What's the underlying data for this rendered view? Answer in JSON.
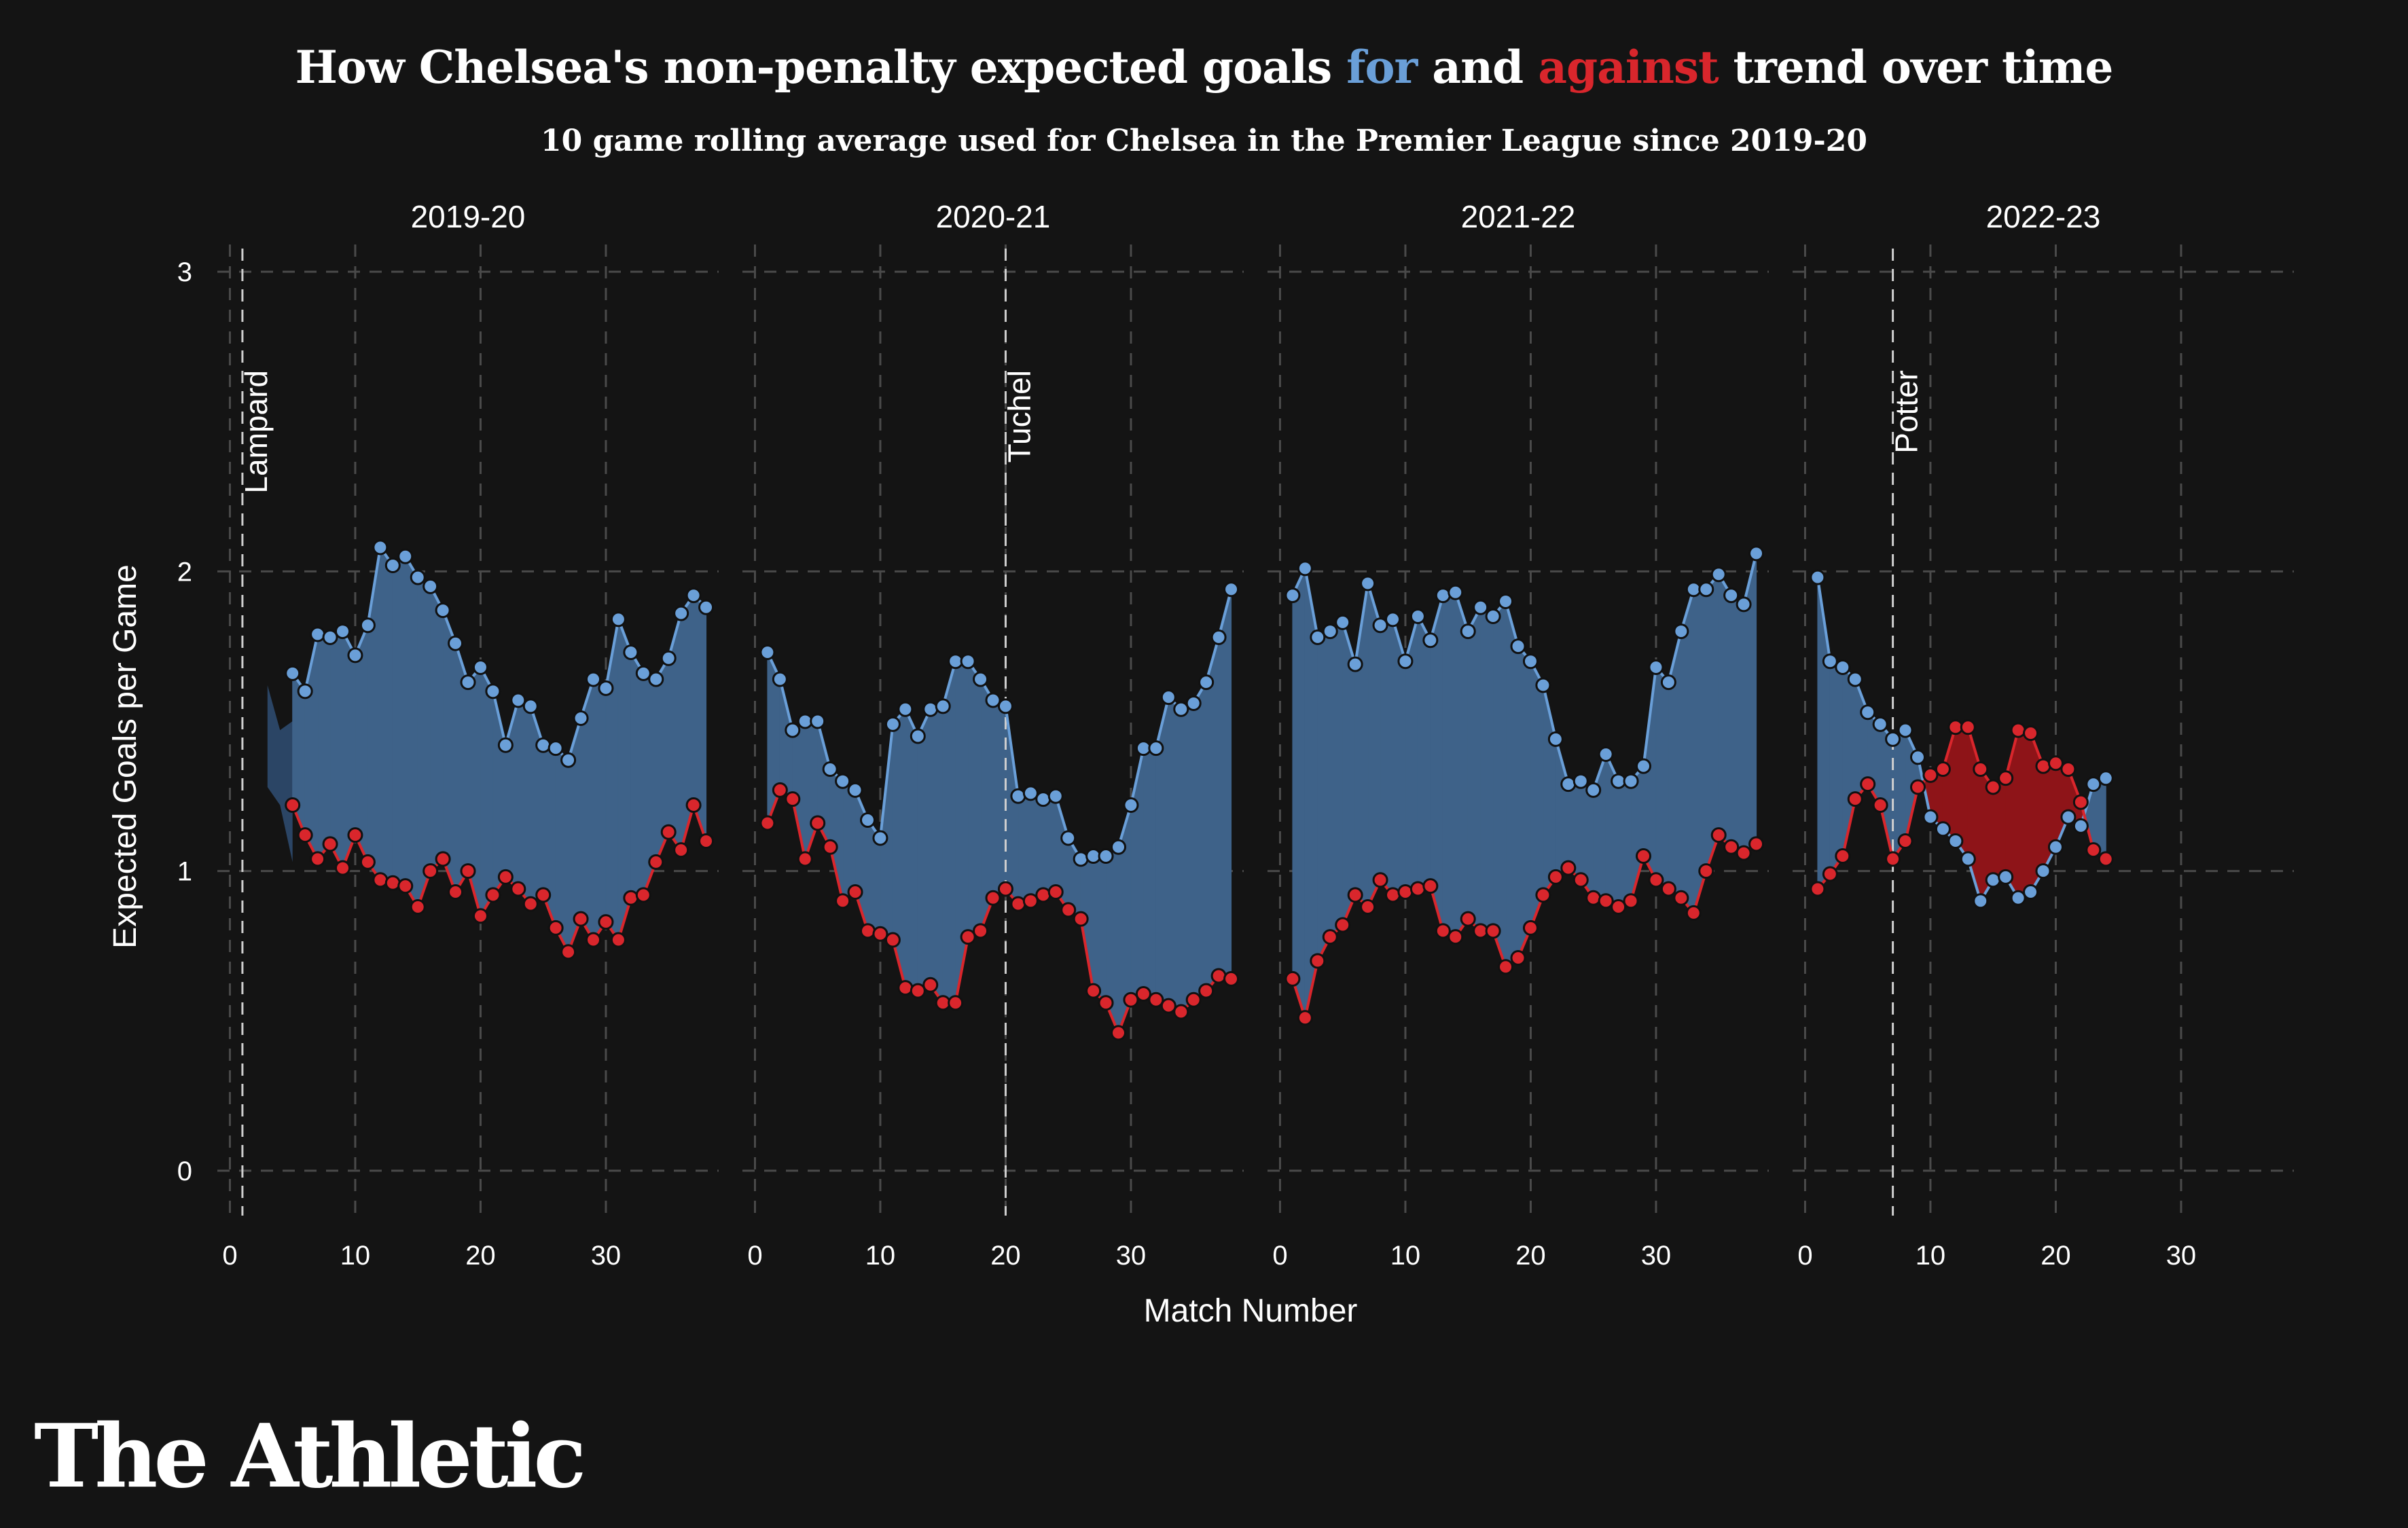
{
  "header": {
    "title_prefix": "How Chelsea's non-penalty expected goals ",
    "title_for": "for",
    "title_mid": " and ",
    "title_against": "against",
    "title_suffix": " trend over time",
    "subtitle": "10 game rolling average used for Chelsea in the Premier League since 2019-20"
  },
  "brand": "The Athletic",
  "colors": {
    "background": "#141414",
    "for": "#6a9fd8",
    "against": "#d9262c",
    "fill_for_ahead": "#3e6289",
    "fill_against_ahead": "#8e1418",
    "grid": "#4a4a4a"
  },
  "chart_data": {
    "type": "line",
    "title": "How Chelsea's non-penalty expected goals for and against trend over time",
    "subtitle": "10 game rolling average used for Chelsea in the Premier League since 2019-20",
    "xlabel": "Match Number",
    "ylabel": "Expected Goals per Game",
    "xlim": [
      -1,
      39
    ],
    "ylim": [
      -0.15,
      3.05
    ],
    "x_ticks": [
      0,
      10,
      20,
      30
    ],
    "y_ticks": [
      0,
      1,
      2,
      3
    ],
    "grid": true,
    "facets": [
      {
        "season": "2019-20",
        "manager_lines": [
          {
            "x": 1,
            "label": "Lampard"
          }
        ],
        "shaded_lead": {
          "start": 3,
          "for": [
            1.62,
            1.47,
            1.5
          ],
          "against": [
            1.28,
            1.22,
            1.03
          ]
        },
        "series": [
          {
            "name": "for",
            "start": 5,
            "values": [
              1.66,
              1.6,
              1.79,
              1.78,
              1.8,
              1.72,
              1.82,
              2.08,
              2.02,
              2.05,
              1.98,
              1.95,
              1.87,
              1.76,
              1.63,
              1.68,
              1.6,
              1.42,
              1.57,
              1.55,
              1.42,
              1.41,
              1.37,
              1.51,
              1.64,
              1.61,
              1.84,
              1.73,
              1.66,
              1.64,
              1.71,
              1.86,
              1.92,
              1.88
            ]
          },
          {
            "name": "against",
            "start": 5,
            "values": [
              1.22,
              1.12,
              1.04,
              1.09,
              1.01,
              1.12,
              1.03,
              0.97,
              0.96,
              0.95,
              0.88,
              1.0,
              1.04,
              0.93,
              1.0,
              0.85,
              0.92,
              0.98,
              0.94,
              0.89,
              0.92,
              0.81,
              0.73,
              0.84,
              0.77,
              0.83,
              0.77,
              0.91,
              0.92,
              1.03,
              1.13,
              1.07,
              1.22,
              1.1
            ]
          }
        ]
      },
      {
        "season": "2020-21",
        "manager_lines": [
          {
            "x": 20,
            "label": "Tuchel"
          }
        ],
        "series": [
          {
            "name": "for",
            "start": 1,
            "values": [
              1.73,
              1.64,
              1.47,
              1.5,
              1.5,
              1.34,
              1.3,
              1.27,
              1.17,
              1.11,
              1.49,
              1.54,
              1.45,
              1.54,
              1.55,
              1.7,
              1.7,
              1.64,
              1.57,
              1.55,
              1.25,
              1.26,
              1.24,
              1.25,
              1.11,
              1.04,
              1.05,
              1.05,
              1.08,
              1.22,
              1.41,
              1.41,
              1.58,
              1.54,
              1.56,
              1.63,
              1.78,
              1.94
            ]
          },
          {
            "name": "against",
            "start": 1,
            "values": [
              1.16,
              1.27,
              1.24,
              1.04,
              1.16,
              1.08,
              0.9,
              0.93,
              0.8,
              0.79,
              0.77,
              0.61,
              0.6,
              0.62,
              0.56,
              0.56,
              0.78,
              0.8,
              0.91,
              0.94,
              0.89,
              0.9,
              0.92,
              0.93,
              0.87,
              0.84,
              0.6,
              0.56,
              0.46,
              0.57,
              0.59,
              0.57,
              0.55,
              0.53,
              0.57,
              0.6,
              0.65,
              0.64
            ]
          }
        ]
      },
      {
        "season": "2021-22",
        "manager_lines": [],
        "series": [
          {
            "name": "for",
            "start": 1,
            "values": [
              1.92,
              2.01,
              1.78,
              1.8,
              1.83,
              1.69,
              1.96,
              1.82,
              1.84,
              1.7,
              1.85,
              1.77,
              1.92,
              1.93,
              1.8,
              1.88,
              1.85,
              1.9,
              1.75,
              1.7,
              1.62,
              1.44,
              1.29,
              1.3,
              1.27,
              1.39,
              1.3,
              1.3,
              1.35,
              1.68,
              1.63,
              1.8,
              1.94,
              1.94,
              1.99,
              1.92,
              1.89,
              2.06
            ]
          },
          {
            "name": "against",
            "start": 1,
            "values": [
              0.64,
              0.51,
              0.7,
              0.78,
              0.82,
              0.92,
              0.88,
              0.97,
              0.92,
              0.93,
              0.94,
              0.95,
              0.8,
              0.78,
              0.84,
              0.8,
              0.8,
              0.68,
              0.71,
              0.81,
              0.92,
              0.98,
              1.01,
              0.97,
              0.91,
              0.9,
              0.88,
              0.9,
              1.05,
              0.97,
              0.94,
              0.91,
              0.86,
              1.0,
              1.12,
              1.08,
              1.06,
              1.09
            ]
          }
        ]
      },
      {
        "season": "2022-23",
        "manager_lines": [
          {
            "x": 7,
            "label": "Potter"
          }
        ],
        "series": [
          {
            "name": "for",
            "start": 1,
            "values": [
              1.98,
              1.7,
              1.68,
              1.64,
              1.53,
              1.49,
              1.44,
              1.47,
              1.38,
              1.18,
              1.14,
              1.1,
              1.04,
              0.9,
              0.97,
              0.98,
              0.91,
              0.93,
              1.0,
              1.08,
              1.18,
              1.15,
              1.29,
              1.31
            ]
          },
          {
            "name": "against",
            "start": 1,
            "values": [
              0.94,
              0.99,
              1.05,
              1.24,
              1.29,
              1.22,
              1.04,
              1.1,
              1.28,
              1.32,
              1.34,
              1.48,
              1.48,
              1.34,
              1.28,
              1.31,
              1.47,
              1.46,
              1.35,
              1.36,
              1.34,
              1.23,
              1.07,
              1.04
            ]
          }
        ]
      }
    ]
  }
}
